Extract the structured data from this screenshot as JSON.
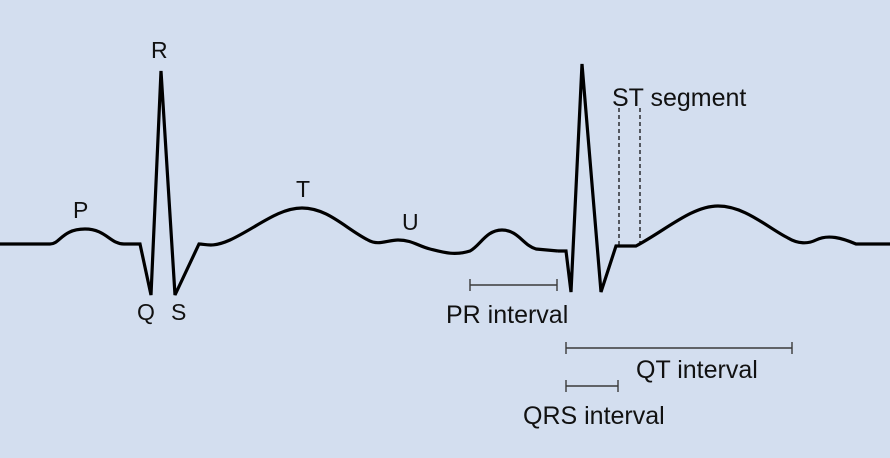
{
  "labels": {
    "p": "P",
    "q": "Q",
    "r": "R",
    "s": "S",
    "t": "T",
    "u": "U",
    "st_segment": "ST segment",
    "pr_interval": "PR interval",
    "qt_interval": "QT interval",
    "qrs_interval": "QRS interval"
  }
}
